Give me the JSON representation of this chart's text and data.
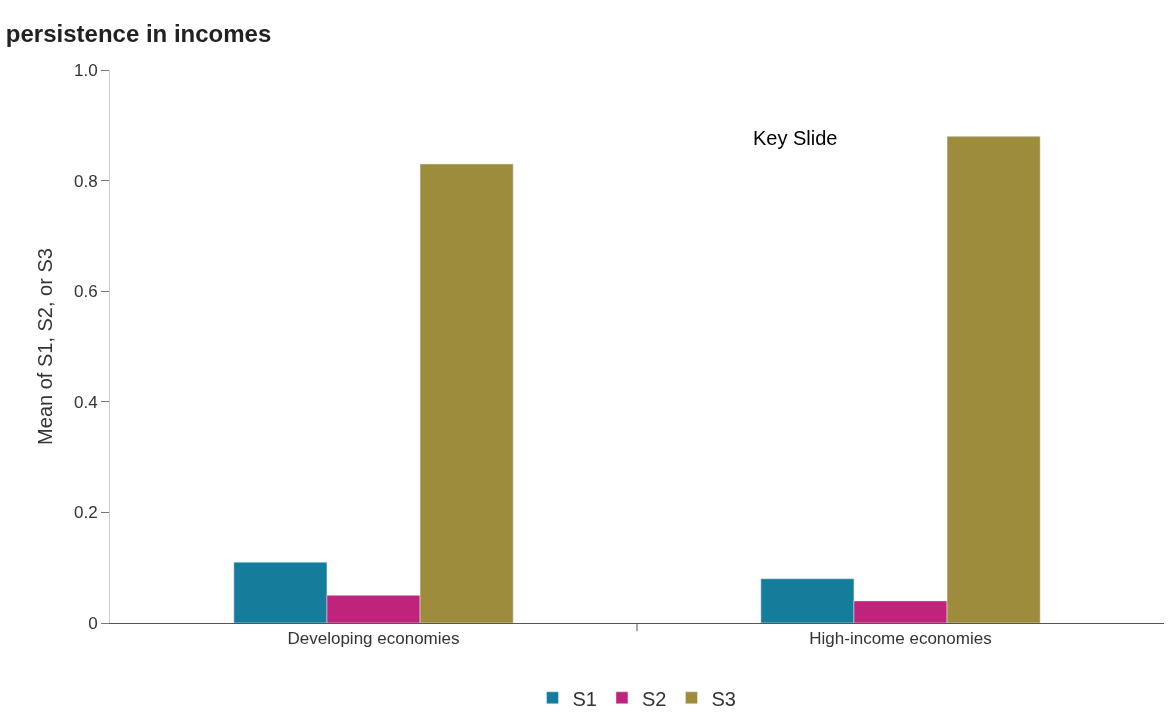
{
  "chart_data": {
    "type": "bar",
    "title": "persistence in incomes",
    "ylabel": "Mean of S1, S2, or S3",
    "categories": [
      "Developing economies",
      "High-income economies"
    ],
    "series": [
      {
        "name": "S1",
        "color": "#167c9c",
        "values": [
          0.11,
          0.08
        ]
      },
      {
        "name": "S2",
        "color": "#c0237b",
        "values": [
          0.05,
          0.04
        ]
      },
      {
        "name": "S3",
        "color": "#9c8c3c",
        "values": [
          0.83,
          0.88
        ]
      }
    ],
    "ylim": [
      0,
      1.0
    ],
    "yticks": [
      0,
      {
        "value": 0.2,
        "label": "0.2"
      },
      {
        "value": 0.4,
        "label": "0.4"
      },
      {
        "value": 0.6,
        "label": "0.6"
      },
      {
        "value": 0.8,
        "label": "0.8"
      },
      {
        "value": 1.0,
        "label": "1.0"
      }
    ],
    "legend": "bottom",
    "annotations": [
      "Key Slide"
    ]
  }
}
